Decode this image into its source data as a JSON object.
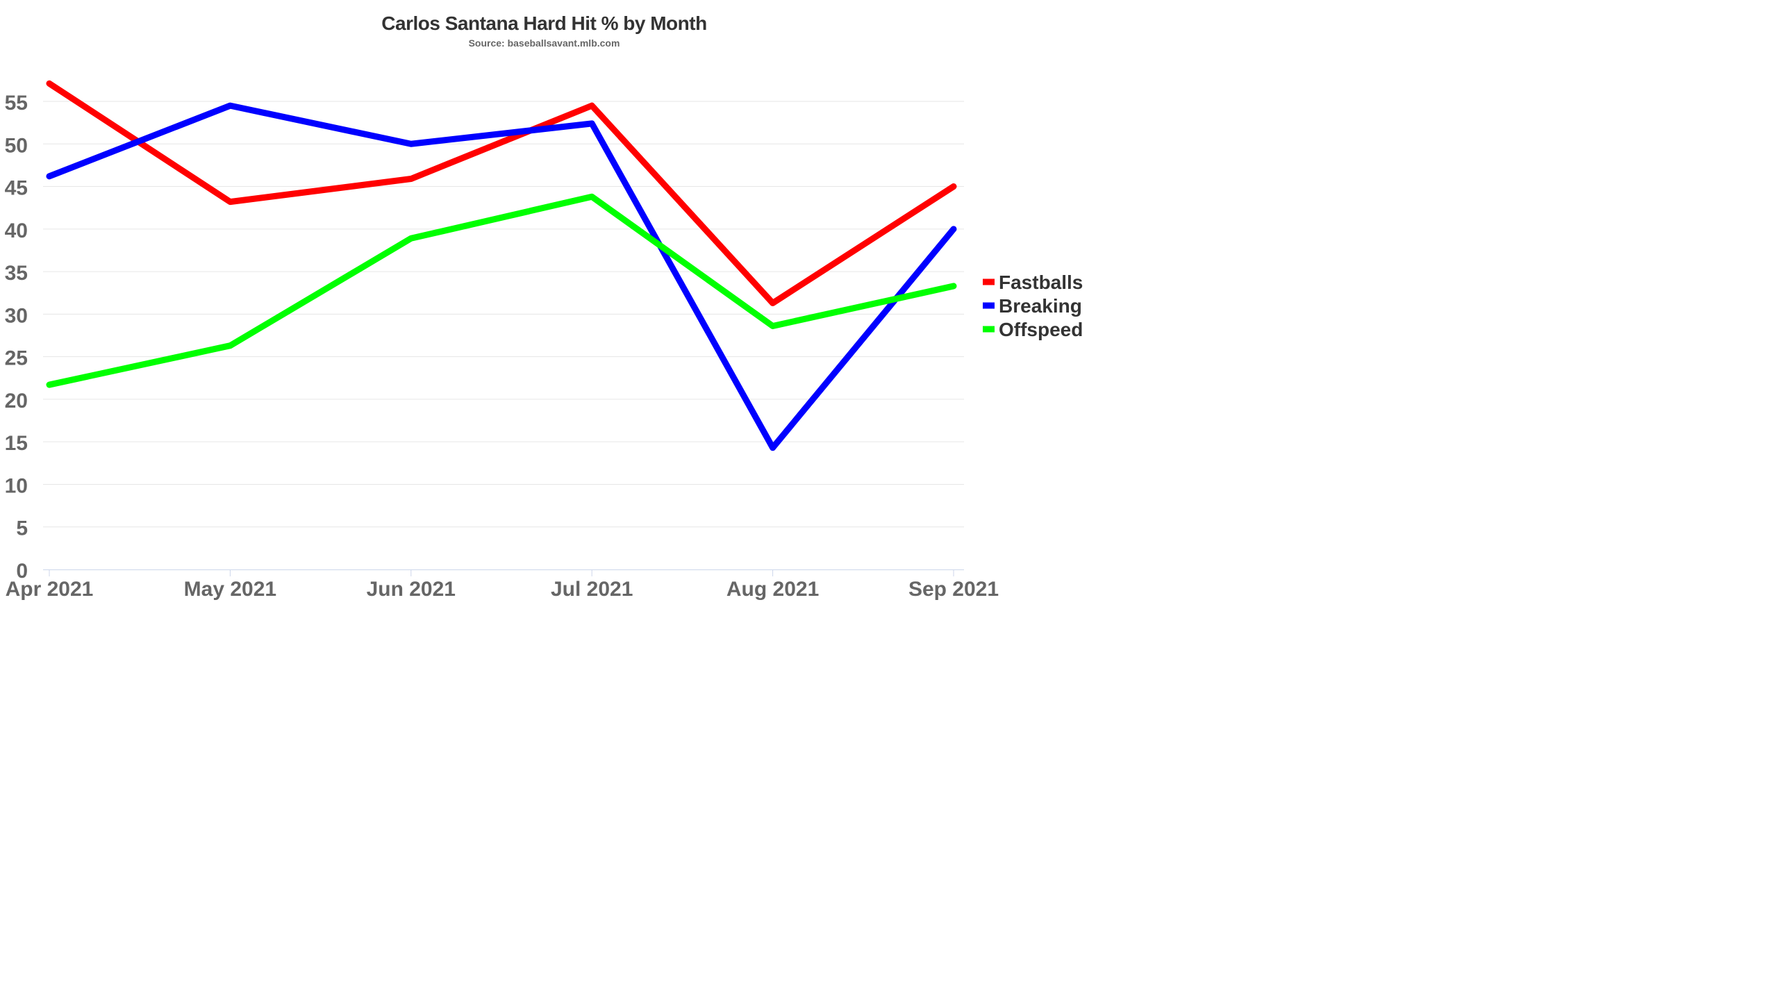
{
  "chart_data": {
    "type": "line",
    "title": "Carlos Santana Hard Hit % by Month",
    "subtitle": "Source: baseballsavant.mlb.com",
    "xlabel": "",
    "ylabel": "",
    "categories": [
      "Apr 2021",
      "May 2021",
      "Jun 2021",
      "Jul 2021",
      "Aug 2021",
      "Sep 2021"
    ],
    "ylim": [
      0,
      55
    ],
    "yticks": [
      0,
      5,
      10,
      15,
      20,
      25,
      30,
      35,
      40,
      45,
      50,
      55
    ],
    "grid": true,
    "legend_position": "right",
    "series": [
      {
        "name": "Fastballs",
        "color": "#ff0000",
        "values": [
          57.1,
          43.2,
          45.9,
          54.5,
          31.3,
          45.0
        ]
      },
      {
        "name": "Breaking",
        "color": "#0000ff",
        "values": [
          46.2,
          54.5,
          50.0,
          52.4,
          14.3,
          40.0
        ]
      },
      {
        "name": "Offspeed",
        "color": "#00ff00",
        "values": [
          21.7,
          26.3,
          38.9,
          43.8,
          28.6,
          33.3
        ]
      }
    ]
  }
}
